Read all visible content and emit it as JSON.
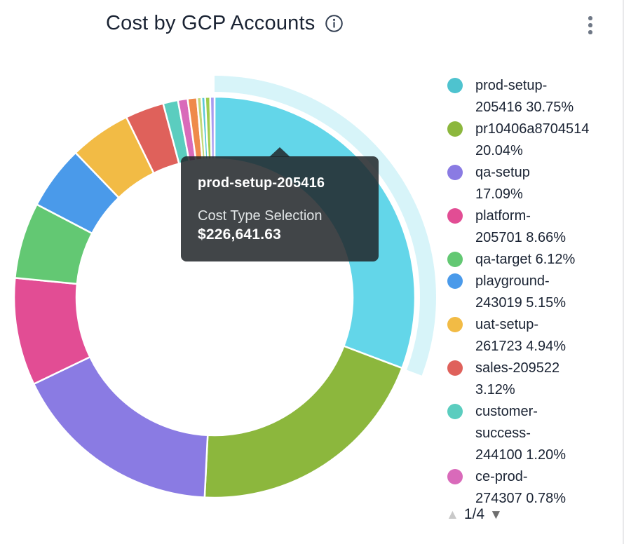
{
  "header": {
    "title": "Cost by GCP Accounts"
  },
  "tooltip": {
    "title": "prod-setup-205416",
    "label": "Cost Type Selection",
    "value": "$226,641.63"
  },
  "legend": {
    "pagination": {
      "current_page": "1/4",
      "up_symbol": "▲",
      "down_symbol": "▼"
    }
  },
  "chart_data": {
    "type": "pie",
    "donut": true,
    "title": "Cost by GCP Accounts",
    "legend_position": "right",
    "hovered_segment": "prod-setup-205416",
    "hovered_segment_value": "$226,641.63",
    "segments": [
      {
        "name": "prod-setup-205416",
        "pct": 30.75,
        "pct_label": "30.75%",
        "color": "#4EC3CF",
        "hover_color": "#63D6E9",
        "hovered": true,
        "legend_lines": [
          "prod-setup-",
          "205416 30.75%"
        ]
      },
      {
        "name": "pr10406a8704514",
        "pct": 20.04,
        "pct_label": "20.04%",
        "color": "#8CB73D",
        "legend_lines": [
          "pr10406a8704514",
          "20.04%"
        ]
      },
      {
        "name": "qa-setup",
        "pct": 17.09,
        "pct_label": "17.09%",
        "color": "#8A7BE3",
        "legend_lines": [
          "qa-setup",
          "17.09%"
        ]
      },
      {
        "name": "platform-205701",
        "pct": 8.66,
        "pct_label": "8.66%",
        "color": "#E24D94",
        "legend_lines": [
          "platform-",
          "205701 8.66%"
        ]
      },
      {
        "name": "qa-target",
        "pct": 6.12,
        "pct_label": "6.12%",
        "color": "#63C873",
        "legend_lines": [
          "qa-target 6.12%"
        ]
      },
      {
        "name": "playground-243019",
        "pct": 5.15,
        "pct_label": "5.15%",
        "color": "#4A9AEA",
        "legend_lines": [
          "playground-",
          "243019 5.15%"
        ]
      },
      {
        "name": "uat-setup-261723",
        "pct": 4.94,
        "pct_label": "4.94%",
        "color": "#F2BB45",
        "legend_lines": [
          "uat-setup-",
          "261723 4.94%"
        ]
      },
      {
        "name": "sales-209522",
        "pct": 3.12,
        "pct_label": "3.12%",
        "color": "#DF615B",
        "legend_lines": [
          "sales-209522",
          "3.12%"
        ]
      },
      {
        "name": "customer-success-244100",
        "pct": 1.2,
        "pct_label": "1.20%",
        "color": "#5BCDBF",
        "legend_lines": [
          "customer-",
          "success-",
          "244100 1.20%"
        ]
      },
      {
        "name": "ce-prod-274307",
        "pct": 0.78,
        "pct_label": "0.78%",
        "color": "#D96ABA",
        "legend_lines": [
          "ce-prod-",
          "274307 0.78%"
        ]
      }
    ],
    "unlabeled_segments": [
      {
        "pct": 0.75,
        "color": "#EF8A4B"
      },
      {
        "pct": 0.35,
        "color": "#C3D97A"
      },
      {
        "pct": 0.3,
        "color": "#59C8D6"
      },
      {
        "pct": 0.4,
        "color": "#9FCC4D"
      },
      {
        "pct": 0.35,
        "color": "#A79BEF"
      }
    ]
  }
}
